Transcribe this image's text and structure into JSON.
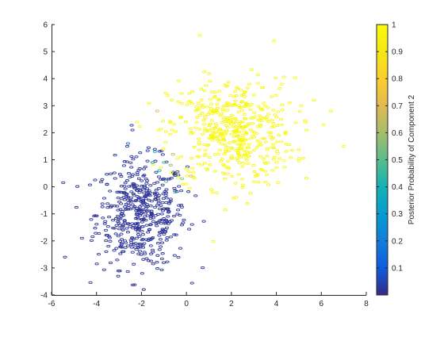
{
  "chart_data": {
    "type": "scatter",
    "marker": "o",
    "xlim": [
      -6,
      8
    ],
    "ylim": [
      -4,
      6
    ],
    "x_ticks": [
      "-6",
      "-4",
      "-2",
      "0",
      "2",
      "4",
      "6",
      "8"
    ],
    "y_ticks": [
      "-4",
      "-3",
      "-2",
      "-1",
      "0",
      "1",
      "2",
      "3",
      "4",
      "5",
      "6"
    ],
    "grid": false,
    "colorbar": {
      "label": "Posterior Probability of Component 2",
      "range": [
        0,
        1
      ],
      "ticks": [
        "0.1",
        "0.2",
        "0.3",
        "0.4",
        "0.5",
        "0.6",
        "0.7",
        "0.8",
        "0.9",
        "1"
      ],
      "colormap": "parula"
    },
    "components": [
      {
        "mean": [
          -2,
          -1
        ],
        "std": [
          1.0,
          1.0
        ],
        "count": 500,
        "posterior": 0.02
      },
      {
        "mean": [
          2,
          2
        ],
        "std": [
          1.4,
          1.0
        ],
        "count": 500,
        "posterior": 0.98
      }
    ],
    "points": [
      [
        -5.4,
        -2.6,
        0.0
      ],
      [
        0.6,
        5.6,
        1.0
      ],
      [
        3.9,
        5.4,
        1.0
      ],
      [
        7.0,
        1.5,
        1.0
      ],
      [
        6.1,
        2.3,
        1.0
      ],
      [
        -1.3,
        2.8,
        0.7
      ],
      [
        -2.4,
        2.1,
        0.03
      ],
      [
        -1.9,
        -3.8,
        0.0
      ],
      [
        -1.0,
        0.9,
        0.45
      ],
      [
        -1.2,
        0.6,
        0.35
      ],
      [
        -0.7,
        0.8,
        0.55
      ],
      [
        -0.9,
        0.2,
        0.5
      ],
      [
        -0.4,
        0.5,
        0.6
      ],
      [
        -1.4,
        1.3,
        0.4
      ],
      [
        -0.6,
        1.2,
        0.65
      ],
      [
        -2.6,
        1.6,
        0.15
      ],
      [
        -0.5,
        -0.2,
        0.45
      ],
      [
        -0.2,
        0.3,
        0.55
      ],
      [
        -1.5,
        0.9,
        0.3
      ],
      [
        0.2,
        0.4,
        0.7
      ]
    ]
  }
}
